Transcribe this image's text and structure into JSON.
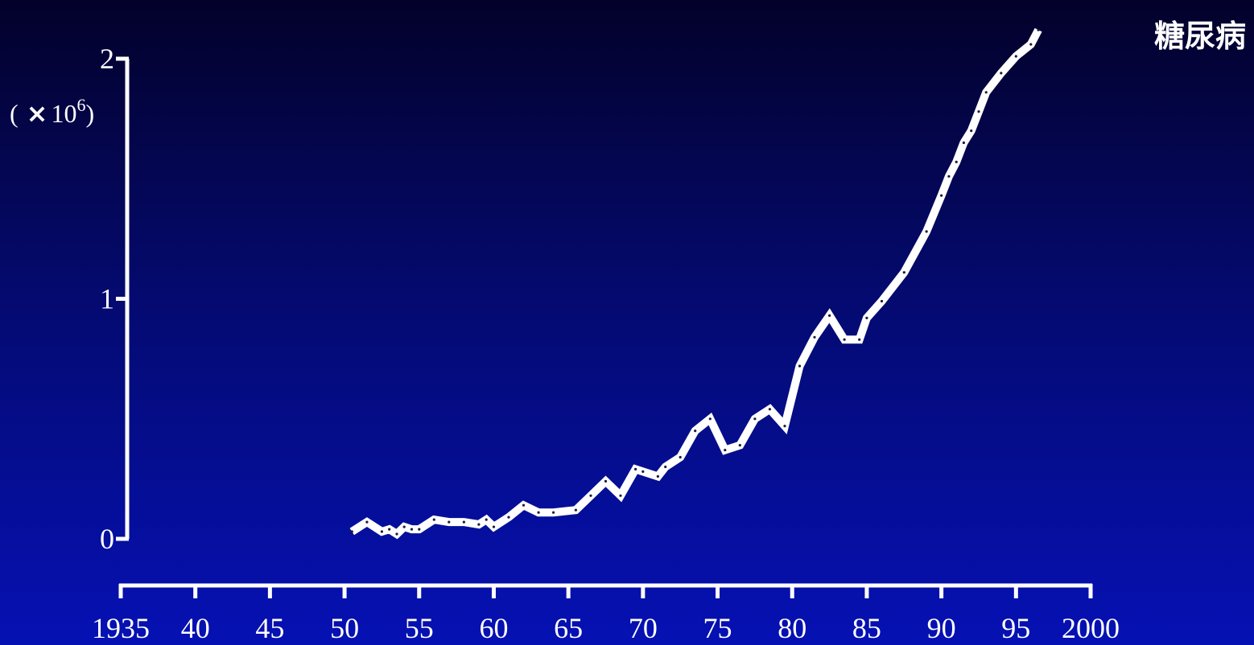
{
  "chart_data": {
    "type": "line",
    "title": "糖尿病",
    "y_unit": "(×10⁶)",
    "y_unit_parts": {
      "open": "(",
      "times": "×",
      "base": "10",
      "exp": "6",
      "close": ")"
    },
    "xlim": [
      1935,
      2000
    ],
    "ylim": [
      0,
      2
    ],
    "x_ticks": [
      1935,
      1940,
      1945,
      1950,
      1955,
      1960,
      1965,
      1970,
      1975,
      1980,
      1985,
      1990,
      1995,
      2000
    ],
    "x_tick_labels": [
      "1935",
      "40",
      "45",
      "50",
      "55",
      "60",
      "65",
      "70",
      "75",
      "80",
      "85",
      "90",
      "95",
      "2000"
    ],
    "y_ticks": [
      0,
      1,
      2
    ],
    "y_tick_labels": [
      "0",
      "1",
      "2"
    ],
    "grid": false,
    "series": [
      {
        "color": "#ffffff",
        "x": [
          1950.5,
          1951.5,
          1952.5,
          1953,
          1953.5,
          1954,
          1954.5,
          1955,
          1956,
          1957,
          1958,
          1959,
          1959.5,
          1960,
          1961,
          1962,
          1963,
          1964,
          1965.5,
          1966.5,
          1967.5,
          1968.5,
          1969.5,
          1970,
          1971,
          1971.5,
          1972.5,
          1973.5,
          1974.5,
          1975.5,
          1976.5,
          1977.5,
          1978.5,
          1979.5,
          1980.5,
          1981.5,
          1982.5,
          1983.5,
          1984.5,
          1985,
          1986,
          1987.5,
          1989,
          1990,
          1990.5,
          1991,
          1991.5,
          1992,
          1992.5,
          1993,
          1994,
          1995,
          1996,
          1996.5
        ],
        "y": [
          0.03,
          0.07,
          0.03,
          0.04,
          0.02,
          0.05,
          0.04,
          0.04,
          0.08,
          0.07,
          0.07,
          0.06,
          0.08,
          0.05,
          0.09,
          0.14,
          0.11,
          0.11,
          0.12,
          0.18,
          0.24,
          0.18,
          0.29,
          0.28,
          0.26,
          0.3,
          0.34,
          0.45,
          0.5,
          0.37,
          0.39,
          0.5,
          0.54,
          0.47,
          0.72,
          0.84,
          0.93,
          0.83,
          0.83,
          0.92,
          0.99,
          1.11,
          1.28,
          1.43,
          1.51,
          1.57,
          1.65,
          1.7,
          1.78,
          1.86,
          1.94,
          2.01,
          2.06,
          2.12
        ]
      }
    ]
  }
}
